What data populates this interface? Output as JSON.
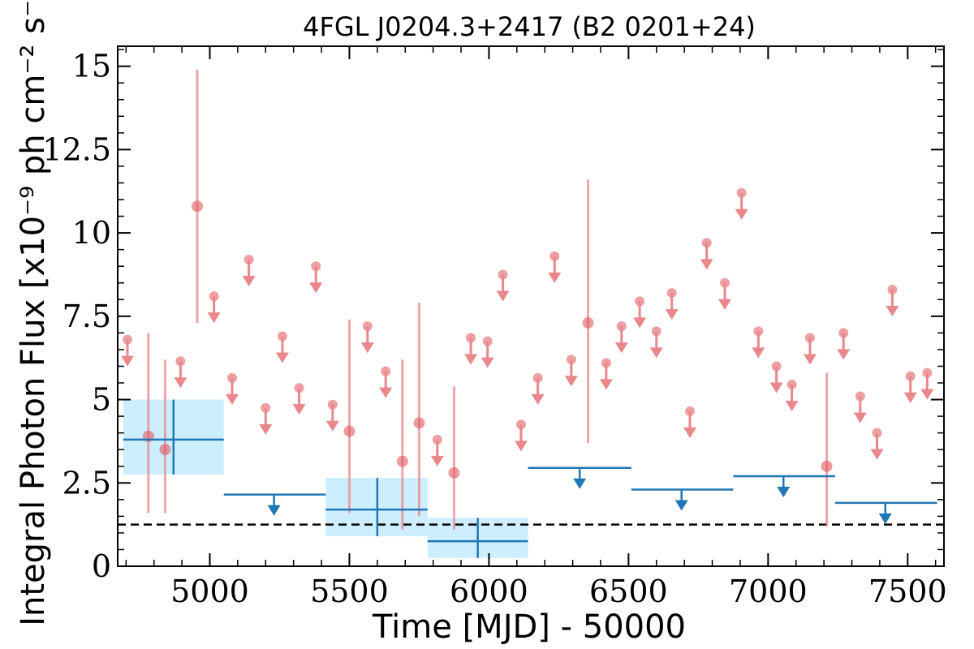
{
  "chart_data": {
    "type": "scatter",
    "title": "4FGL J0204.3+2417 (B2 0201+24)",
    "xlabel": "Time [MJD] - 50000",
    "ylabel": "Integral Photon Flux [x10⁻⁹ ph cm⁻² s⁻¹]",
    "xlim": [
      4670,
      7630
    ],
    "ylim": [
      0,
      15.6
    ],
    "xticks": [
      5000,
      5500,
      6000,
      6500,
      7000,
      7500
    ],
    "xtick_labels": [
      "5000",
      "5500",
      "6000",
      "6500",
      "7000",
      "7500"
    ],
    "yticks": [
      0,
      2.5,
      5,
      7.5,
      10,
      12.5,
      15
    ],
    "ytick_labels": [
      "0",
      "2.5",
      "5",
      "7.5",
      "10",
      "12.5",
      "15"
    ],
    "reference_line": {
      "y": 1.25,
      "style": "dashed",
      "color": "#000000"
    },
    "colors": {
      "short_bins": "#e8878c",
      "long_bins": "#1f77b4",
      "long_band": "#cdeeff"
    },
    "series": [
      {
        "bins": "short",
        "detections": [
          {
            "x": 4780,
            "y": 3.9,
            "ylow": 1.6,
            "yhigh": 7.0
          },
          {
            "x": 4840,
            "y": 3.5,
            "ylow": 1.6,
            "yhigh": 6.2
          },
          {
            "x": 4955,
            "y": 10.8,
            "ylow": 7.3,
            "yhigh": 14.9
          },
          {
            "x": 5500,
            "y": 4.05,
            "ylow": 1.6,
            "yhigh": 7.4
          },
          {
            "x": 5690,
            "y": 3.15,
            "ylow": 1.1,
            "yhigh": 6.2
          },
          {
            "x": 5750,
            "y": 4.3,
            "ylow": 1.5,
            "yhigh": 7.9
          },
          {
            "x": 5875,
            "y": 2.8,
            "ylow": 1.1,
            "yhigh": 5.4
          },
          {
            "x": 6355,
            "y": 7.3,
            "ylow": 3.7,
            "yhigh": 11.6
          },
          {
            "x": 7210,
            "y": 3.0,
            "ylow": 1.2,
            "yhigh": 5.8
          }
        ],
        "upper_limits": [
          {
            "x": 4705,
            "y": 6.8
          },
          {
            "x": 4895,
            "y": 6.15
          },
          {
            "x": 5015,
            "y": 8.1
          },
          {
            "x": 5080,
            "y": 5.65
          },
          {
            "x": 5140,
            "y": 9.2
          },
          {
            "x": 5200,
            "y": 4.75
          },
          {
            "x": 5260,
            "y": 6.9
          },
          {
            "x": 5320,
            "y": 5.35
          },
          {
            "x": 5380,
            "y": 9.0
          },
          {
            "x": 5440,
            "y": 4.85
          },
          {
            "x": 5565,
            "y": 7.2
          },
          {
            "x": 5630,
            "y": 5.85
          },
          {
            "x": 5815,
            "y": 3.8
          },
          {
            "x": 5935,
            "y": 6.85
          },
          {
            "x": 5995,
            "y": 6.75
          },
          {
            "x": 6050,
            "y": 8.75
          },
          {
            "x": 6115,
            "y": 4.25
          },
          {
            "x": 6175,
            "y": 5.65
          },
          {
            "x": 6235,
            "y": 9.3
          },
          {
            "x": 6295,
            "y": 6.2
          },
          {
            "x": 6420,
            "y": 6.1
          },
          {
            "x": 6475,
            "y": 7.2
          },
          {
            "x": 6540,
            "y": 7.95
          },
          {
            "x": 6600,
            "y": 7.05
          },
          {
            "x": 6655,
            "y": 8.2
          },
          {
            "x": 6720,
            "y": 4.65
          },
          {
            "x": 6780,
            "y": 9.7
          },
          {
            "x": 6845,
            "y": 8.5
          },
          {
            "x": 6905,
            "y": 11.2
          },
          {
            "x": 6965,
            "y": 7.05
          },
          {
            "x": 7030,
            "y": 6.0
          },
          {
            "x": 7085,
            "y": 5.45
          },
          {
            "x": 7150,
            "y": 6.85
          },
          {
            "x": 7270,
            "y": 7.0
          },
          {
            "x": 7330,
            "y": 5.1
          },
          {
            "x": 7390,
            "y": 4.0
          },
          {
            "x": 7445,
            "y": 8.3
          },
          {
            "x": 7510,
            "y": 5.7
          },
          {
            "x": 7570,
            "y": 5.8
          }
        ]
      },
      {
        "bins": "long",
        "detections": [
          {
            "x": 4870,
            "xlow": 4690,
            "xhigh": 5050,
            "y": 3.8,
            "ylow": 2.75,
            "yhigh": 5.0
          },
          {
            "x": 5600,
            "xlow": 5415,
            "xhigh": 5780,
            "y": 1.7,
            "ylow": 0.9,
            "yhigh": 2.65
          },
          {
            "x": 5960,
            "xlow": 5780,
            "xhigh": 6140,
            "y": 0.75,
            "ylow": 0.25,
            "yhigh": 1.45
          }
        ],
        "upper_limits": [
          {
            "x": 5230,
            "xlow": 5050,
            "xhigh": 5415,
            "y": 2.15
          },
          {
            "x": 6325,
            "xlow": 6140,
            "xhigh": 6510,
            "y": 2.95
          },
          {
            "x": 6690,
            "xlow": 6510,
            "xhigh": 6875,
            "y": 2.3
          },
          {
            "x": 7055,
            "xlow": 6875,
            "xhigh": 7240,
            "y": 2.7
          },
          {
            "x": 7420,
            "xlow": 7240,
            "xhigh": 7605,
            "y": 1.9
          }
        ]
      }
    ]
  }
}
